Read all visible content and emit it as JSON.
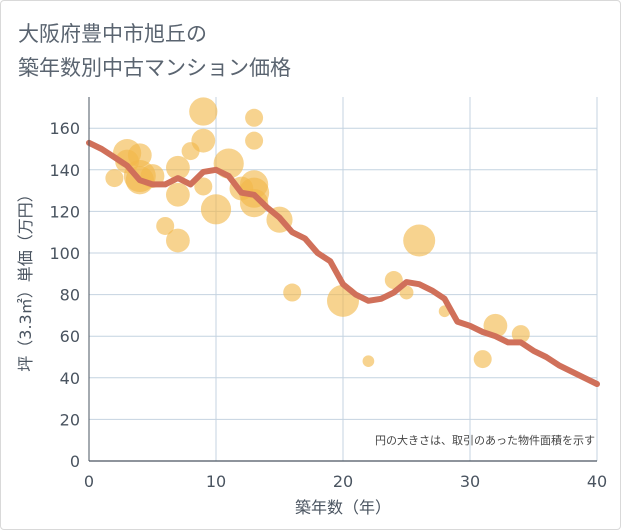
{
  "title_line1": "大阪府豊中市旭丘の",
  "title_line2": "築年数別中古マンション価格",
  "chart_data": {
    "type": "scatter",
    "title": "大阪府豊中市旭丘の築年数別中古マンション価格",
    "xlabel": "築年数（年）",
    "ylabel": "坪（3.3㎡）単価（万円）",
    "xlim": [
      0,
      40
    ],
    "ylim": [
      0,
      175
    ],
    "xticks": [
      0,
      10,
      20,
      30,
      40
    ],
    "yticks": [
      0,
      20,
      40,
      60,
      80,
      100,
      120,
      140,
      160
    ],
    "note": "円の大きさは、取引のあった物件面積を示す",
    "bubble_color": "#f2b84b",
    "line_color": "#d0705a",
    "bubbles": [
      {
        "x": 2,
        "y": 136,
        "s": 1
      },
      {
        "x": 3,
        "y": 148,
        "s": 3
      },
      {
        "x": 3,
        "y": 144,
        "s": 2
      },
      {
        "x": 4,
        "y": 147,
        "s": 2
      },
      {
        "x": 4,
        "y": 137,
        "s": 4
      },
      {
        "x": 4,
        "y": 135,
        "s": 3
      },
      {
        "x": 5,
        "y": 137,
        "s": 2
      },
      {
        "x": 6,
        "y": 113,
        "s": 1
      },
      {
        "x": 7,
        "y": 141,
        "s": 2
      },
      {
        "x": 7,
        "y": 128,
        "s": 2
      },
      {
        "x": 7,
        "y": 106,
        "s": 2
      },
      {
        "x": 8,
        "y": 149,
        "s": 1
      },
      {
        "x": 9,
        "y": 168,
        "s": 3
      },
      {
        "x": 9,
        "y": 154,
        "s": 2
      },
      {
        "x": 9,
        "y": 132,
        "s": 1
      },
      {
        "x": 10,
        "y": 121,
        "s": 3.5
      },
      {
        "x": 11,
        "y": 143,
        "s": 3.5
      },
      {
        "x": 12,
        "y": 131,
        "s": 2
      },
      {
        "x": 13,
        "y": 165,
        "s": 1
      },
      {
        "x": 13,
        "y": 154,
        "s": 1
      },
      {
        "x": 13,
        "y": 133,
        "s": 3
      },
      {
        "x": 13,
        "y": 129,
        "s": 3.5
      },
      {
        "x": 13,
        "y": 124,
        "s": 3
      },
      {
        "x": 15,
        "y": 116,
        "s": 2.5
      },
      {
        "x": 16,
        "y": 81,
        "s": 1
      },
      {
        "x": 20,
        "y": 77,
        "s": 4
      },
      {
        "x": 22,
        "y": 48,
        "s": 0.3
      },
      {
        "x": 24,
        "y": 87,
        "s": 1
      },
      {
        "x": 25,
        "y": 81,
        "s": 0.5
      },
      {
        "x": 26,
        "y": 106,
        "s": 4
      },
      {
        "x": 28,
        "y": 72,
        "s": 0.3
      },
      {
        "x": 31,
        "y": 49,
        "s": 1
      },
      {
        "x": 32,
        "y": 65,
        "s": 2
      },
      {
        "x": 34,
        "y": 61,
        "s": 1
      }
    ],
    "trend": {
      "x": [
        0,
        1,
        2,
        3,
        4,
        5,
        6,
        7,
        8,
        9,
        10,
        11,
        12,
        13,
        14,
        15,
        16,
        17,
        18,
        19,
        20,
        21,
        22,
        23,
        24,
        25,
        26,
        27,
        28,
        29,
        30,
        31,
        32,
        33,
        34,
        35,
        36,
        37,
        38,
        39,
        40
      ],
      "y": [
        153,
        150,
        146,
        142,
        135,
        133,
        133,
        136,
        133,
        139,
        140,
        137,
        129,
        128,
        122,
        117,
        110,
        107,
        100,
        96,
        85,
        80,
        77,
        78,
        81,
        86,
        85,
        82,
        78,
        67,
        65,
        62,
        60,
        57,
        57,
        53,
        50,
        46,
        43,
        40,
        37
      ]
    }
  }
}
